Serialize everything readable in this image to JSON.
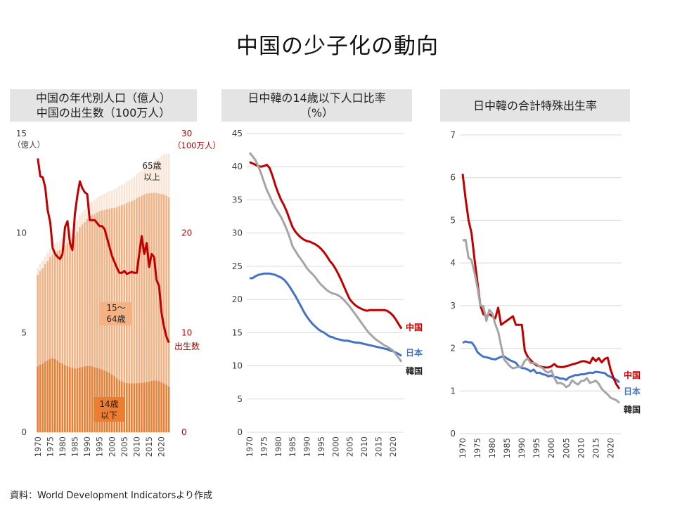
{
  "page": {
    "title": "中国の少子化の動向",
    "source": "資料：World Development Indicatorsより作成"
  },
  "colors": {
    "china": "#c00000",
    "japan": "#4472c4",
    "korea": "#a5a5a5",
    "age0_14": "#ed7d31",
    "age15_64": "#f4b183",
    "age65": "#fbe5d6",
    "grid": "#d9d9d9",
    "axis": "#595959"
  },
  "chart_data": [
    {
      "type": "bar",
      "title_line1": "中国の年代別人口（億人）",
      "title_line2": "中国の出生数（100万人）",
      "x": [
        1970,
        1971,
        1972,
        1973,
        1974,
        1975,
        1976,
        1977,
        1978,
        1979,
        1980,
        1981,
        1982,
        1983,
        1984,
        1985,
        1986,
        1987,
        1988,
        1989,
        1990,
        1991,
        1992,
        1993,
        1994,
        1995,
        1996,
        1997,
        1998,
        1999,
        2000,
        2001,
        2002,
        2003,
        2004,
        2005,
        2006,
        2007,
        2008,
        2009,
        2010,
        2011,
        2012,
        2013,
        2014,
        2015,
        2016,
        2017,
        2018,
        2019,
        2020,
        2021,
        2022,
        2023
      ],
      "xticks": [
        "1970",
        "1975",
        "1980",
        "1985",
        "1990",
        "1995",
        "2000",
        "2005",
        "2010",
        "2015",
        "2020"
      ],
      "y_left": {
        "ticks": [
          "0",
          "5",
          "10",
          "15"
        ],
        "unit": "（億人）",
        "range": [
          0,
          15
        ]
      },
      "y_right": {
        "ticks": [
          "0",
          "10",
          "20",
          "30"
        ],
        "unit": "（100万人）",
        "name": "出生数",
        "range": [
          0,
          30
        ]
      },
      "series": [
        {
          "name": "14歳以下",
          "label": "14歳\n以下",
          "values": [
            3.3,
            3.4,
            3.45,
            3.55,
            3.6,
            3.7,
            3.72,
            3.68,
            3.6,
            3.5,
            3.45,
            3.38,
            3.32,
            3.28,
            3.24,
            3.2,
            3.22,
            3.25,
            3.28,
            3.3,
            3.32,
            3.33,
            3.3,
            3.27,
            3.24,
            3.2,
            3.15,
            3.1,
            3.05,
            2.98,
            2.9,
            2.82,
            2.7,
            2.62,
            2.56,
            2.5,
            2.47,
            2.46,
            2.46,
            2.46,
            2.46,
            2.47,
            2.48,
            2.5,
            2.52,
            2.55,
            2.58,
            2.6,
            2.6,
            2.57,
            2.52,
            2.45,
            2.38,
            2.3
          ]
        },
        {
          "name": "15～64歳",
          "label": "15～\n64歳",
          "values": [
            4.6,
            4.7,
            4.8,
            4.9,
            5.0,
            5.1,
            5.2,
            5.35,
            5.5,
            5.65,
            5.85,
            6.0,
            6.2,
            6.35,
            6.5,
            6.7,
            6.85,
            7.05,
            7.15,
            7.25,
            7.4,
            7.5,
            7.6,
            7.7,
            7.8,
            7.9,
            8.0,
            8.05,
            8.15,
            8.25,
            8.35,
            8.45,
            8.6,
            8.75,
            8.85,
            8.95,
            9.05,
            9.1,
            9.15,
            9.2,
            9.3,
            9.35,
            9.4,
            9.45,
            9.47,
            9.45,
            9.44,
            9.43,
            9.42,
            9.42,
            9.45,
            9.5,
            9.5,
            9.5
          ]
        },
        {
          "name": "65歳以上",
          "label": "65歳\n以上",
          "values": [
            0.35,
            0.36,
            0.37,
            0.38,
            0.4,
            0.41,
            0.42,
            0.43,
            0.45,
            0.46,
            0.47,
            0.49,
            0.5,
            0.52,
            0.54,
            0.56,
            0.58,
            0.6,
            0.61,
            0.62,
            0.65,
            0.67,
            0.69,
            0.72,
            0.74,
            0.76,
            0.78,
            0.81,
            0.84,
            0.87,
            0.9,
            0.93,
            0.95,
            0.98,
            1.01,
            1.04,
            1.07,
            1.1,
            1.13,
            1.16,
            1.19,
            1.23,
            1.27,
            1.32,
            1.38,
            1.44,
            1.51,
            1.59,
            1.67,
            1.76,
            1.9,
            2.0,
            2.1,
            2.2
          ]
        },
        {
          "name": "出生数",
          "axis": "right",
          "values": [
            27.5,
            25.7,
            25.6,
            24.6,
            22.3,
            21.1,
            18.5,
            17.9,
            17.6,
            17.4,
            17.9,
            20.6,
            21.2,
            19.0,
            18.3,
            21.9,
            23.8,
            25.2,
            24.5,
            24.1,
            23.9,
            21.3,
            21.3,
            21.3,
            21.0,
            20.7,
            20.7,
            20.4,
            19.5,
            18.6,
            17.7,
            17.1,
            16.5,
            16.0,
            16.0,
            16.2,
            15.9,
            16.0,
            16.1,
            16.0,
            16.0,
            17.9,
            19.7,
            17.9,
            19.0,
            16.6,
            17.9,
            17.6,
            15.3,
            14.7,
            12.0,
            10.6,
            9.6,
            9.0
          ]
        }
      ]
    },
    {
      "type": "line",
      "title_line1": "日中韓の14歳以下人口比率",
      "title_line2": "（%）",
      "x_start": 1970,
      "xticks": [
        "1970",
        "1975",
        "1980",
        "1985",
        "1990",
        "1995",
        "2000",
        "2005",
        "2010",
        "2015",
        "2020"
      ],
      "yticks": [
        "0",
        "5",
        "10",
        "15",
        "20",
        "25",
        "30",
        "35",
        "40",
        "45"
      ],
      "ylim": [
        0,
        45
      ],
      "series": [
        {
          "name": "中国",
          "color": "#c00000",
          "values": [
            40.7,
            40.5,
            40.3,
            40.1,
            40.0,
            40.1,
            40.3,
            39.8,
            38.6,
            37.2,
            36.0,
            35.0,
            34.2,
            33.2,
            32.0,
            30.9,
            30.2,
            29.7,
            29.3,
            29.0,
            28.8,
            28.7,
            28.5,
            28.3,
            28.0,
            27.6,
            27.1,
            26.5,
            25.8,
            25.3,
            24.6,
            23.8,
            22.9,
            21.9,
            20.9,
            20.0,
            19.5,
            19.1,
            18.8,
            18.6,
            18.4,
            18.3,
            18.4,
            18.4,
            18.4,
            18.4,
            18.4,
            18.4,
            18.3,
            18.0,
            17.6,
            17.0,
            16.3,
            15.6
          ]
        },
        {
          "name": "日本",
          "color": "#4472c4",
          "values": [
            23.2,
            23.2,
            23.5,
            23.7,
            23.8,
            23.9,
            23.9,
            23.9,
            23.8,
            23.7,
            23.5,
            23.3,
            23.0,
            22.5,
            21.9,
            21.2,
            20.5,
            19.7,
            18.9,
            18.1,
            17.4,
            16.8,
            16.3,
            15.9,
            15.5,
            15.2,
            15.0,
            14.7,
            14.4,
            14.3,
            14.1,
            14.0,
            13.9,
            13.8,
            13.8,
            13.7,
            13.6,
            13.5,
            13.5,
            13.4,
            13.3,
            13.2,
            13.1,
            13.0,
            12.9,
            12.8,
            12.7,
            12.6,
            12.5,
            12.3,
            12.2,
            12.0,
            11.8,
            11.5
          ]
        },
        {
          "name": "韓国",
          "color": "#a5a5a5",
          "values": [
            42.1,
            41.6,
            41.0,
            40.1,
            39.0,
            37.7,
            36.5,
            35.6,
            34.6,
            33.8,
            33.1,
            32.4,
            31.5,
            30.5,
            29.3,
            28.0,
            27.3,
            26.6,
            26.0,
            25.4,
            24.7,
            24.2,
            23.8,
            23.3,
            22.7,
            22.2,
            21.8,
            21.4,
            21.1,
            20.9,
            20.8,
            20.6,
            20.3,
            19.9,
            19.4,
            18.9,
            18.3,
            17.7,
            17.1,
            16.5,
            15.9,
            15.3,
            14.8,
            14.4,
            14.0,
            13.7,
            13.4,
            13.1,
            12.9,
            12.6,
            12.3,
            11.8,
            11.2,
            10.6
          ]
        }
      ]
    },
    {
      "type": "line",
      "title_line1": "日中韓の合計特殊出生率",
      "x_start": 1970,
      "xticks": [
        "1970",
        "1975",
        "1980",
        "1985",
        "1990",
        "1995",
        "2000",
        "2005",
        "2010",
        "2015",
        "2020"
      ],
      "yticks": [
        "0",
        "1",
        "2",
        "3",
        "4",
        "5",
        "6",
        "7"
      ],
      "ylim": [
        0,
        7
      ],
      "series": [
        {
          "name": "日本",
          "color": "#4472c4",
          "values": [
            2.13,
            2.16,
            2.14,
            2.14,
            2.05,
            1.91,
            1.85,
            1.8,
            1.79,
            1.77,
            1.75,
            1.74,
            1.77,
            1.8,
            1.81,
            1.76,
            1.72,
            1.69,
            1.66,
            1.57,
            1.54,
            1.53,
            1.5,
            1.46,
            1.5,
            1.42,
            1.43,
            1.39,
            1.38,
            1.34,
            1.36,
            1.33,
            1.32,
            1.29,
            1.29,
            1.26,
            1.32,
            1.34,
            1.37,
            1.37,
            1.39,
            1.39,
            1.41,
            1.43,
            1.42,
            1.45,
            1.44,
            1.43,
            1.42,
            1.36,
            1.33,
            1.3,
            1.26,
            1.2
          ]
        },
        {
          "name": "中国",
          "color": "#c00000",
          "values": [
            6.09,
            5.5,
            5.0,
            4.7,
            4.1,
            3.55,
            3.0,
            2.8,
            2.75,
            2.8,
            2.75,
            2.7,
            2.95,
            2.55,
            2.6,
            2.65,
            2.7,
            2.75,
            2.55,
            2.55,
            2.55,
            1.94,
            1.8,
            1.72,
            1.65,
            1.6,
            1.58,
            1.56,
            1.55,
            1.55,
            1.58,
            1.63,
            1.57,
            1.56,
            1.56,
            1.58,
            1.6,
            1.62,
            1.64,
            1.66,
            1.69,
            1.7,
            1.68,
            1.65,
            1.78,
            1.7,
            1.77,
            1.67,
            1.75,
            1.78,
            1.5,
            1.3,
            1.15,
            1.05
          ]
        },
        {
          "name": "韓国",
          "color": "#a5a5a5",
          "values": [
            4.53,
            4.54,
            4.12,
            4.07,
            3.77,
            3.43,
            3.0,
            2.99,
            2.64,
            2.9,
            2.82,
            2.57,
            2.39,
            2.06,
            1.74,
            1.66,
            1.58,
            1.53,
            1.55,
            1.56,
            1.57,
            1.71,
            1.76,
            1.65,
            1.66,
            1.63,
            1.57,
            1.54,
            1.46,
            1.43,
            1.48,
            1.31,
            1.18,
            1.19,
            1.16,
            1.09,
            1.13,
            1.25,
            1.19,
            1.15,
            1.23,
            1.24,
            1.3,
            1.19,
            1.21,
            1.24,
            1.17,
            1.05,
            0.98,
            0.92,
            0.84,
            0.81,
            0.78,
            0.72
          ]
        }
      ]
    }
  ]
}
